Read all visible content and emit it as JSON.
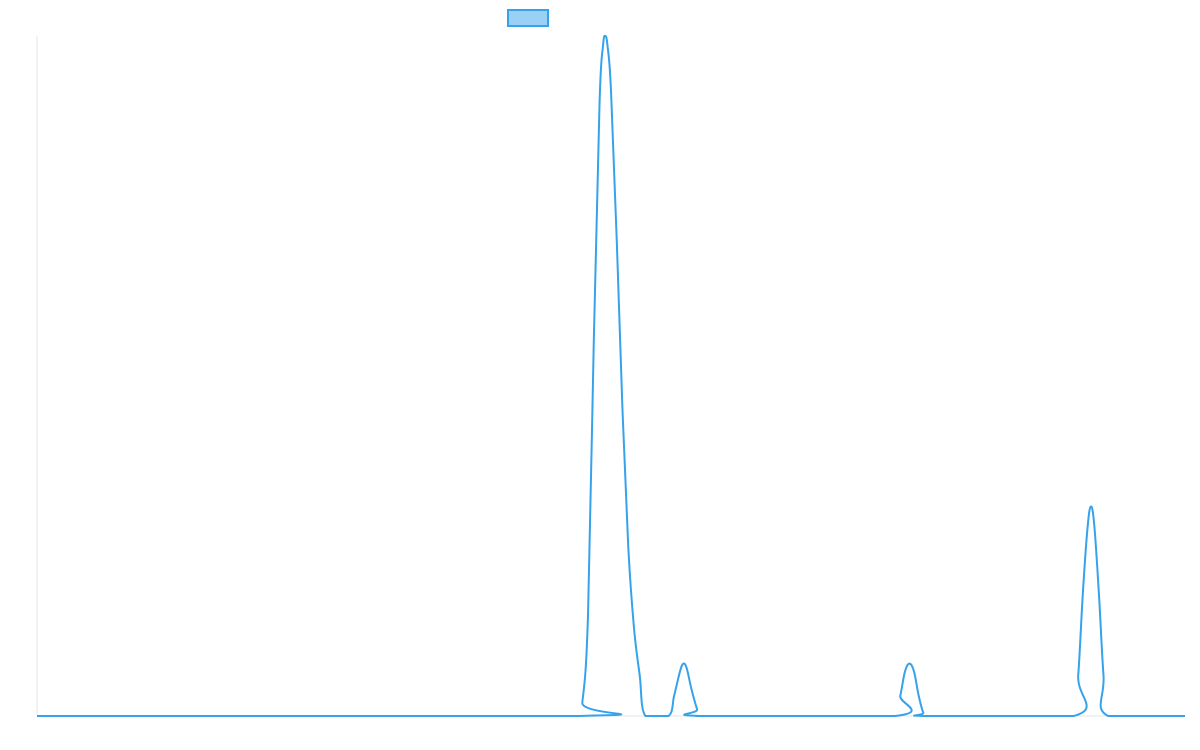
{
  "chart_data": {
    "type": "line",
    "title": "",
    "xlabel": "",
    "ylabel": "",
    "x_range": [
      0,
      100
    ],
    "ylim": [
      0,
      100
    ],
    "grid": false,
    "legend_position": "top-center",
    "series": [
      {
        "label": "",
        "color": "#36a2eb",
        "fill_color": "#9ad0f5",
        "points": [
          [
            0,
            0
          ],
          [
            47,
            0
          ],
          [
            47.5,
            2
          ],
          [
            48,
            15
          ],
          [
            48.5,
            55
          ],
          [
            49,
            90
          ],
          [
            49.3,
            98.5
          ],
          [
            49.5,
            100
          ],
          [
            49.7,
            98.5
          ],
          [
            50,
            92
          ],
          [
            50.5,
            70
          ],
          [
            51,
            45
          ],
          [
            51.5,
            25
          ],
          [
            52,
            13
          ],
          [
            52.5,
            6
          ],
          [
            53,
            0
          ],
          [
            55,
            0
          ],
          [
            55.5,
            3
          ],
          [
            56,
            6.5
          ],
          [
            56.3,
            7.7
          ],
          [
            56.6,
            7
          ],
          [
            57,
            4
          ],
          [
            57.5,
            1
          ],
          [
            57.8,
            0
          ],
          [
            74.7,
            0
          ],
          [
            75.2,
            3
          ],
          [
            75.6,
            6.5
          ],
          [
            76,
            7.7
          ],
          [
            76.4,
            6.5
          ],
          [
            76.8,
            3
          ],
          [
            77.2,
            0.5
          ],
          [
            77.5,
            0
          ],
          [
            90.3,
            0
          ],
          [
            90.7,
            6
          ],
          [
            91.1,
            18
          ],
          [
            91.5,
            27.5
          ],
          [
            91.8,
            30.8
          ],
          [
            92.1,
            28
          ],
          [
            92.5,
            18
          ],
          [
            92.9,
            6
          ],
          [
            93.3,
            0
          ],
          [
            100,
            0
          ]
        ]
      }
    ]
  },
  "legend": {
    "items": [
      {
        "label": "",
        "color": "#36a2eb",
        "fill_color": "#9ad0f5"
      }
    ]
  }
}
